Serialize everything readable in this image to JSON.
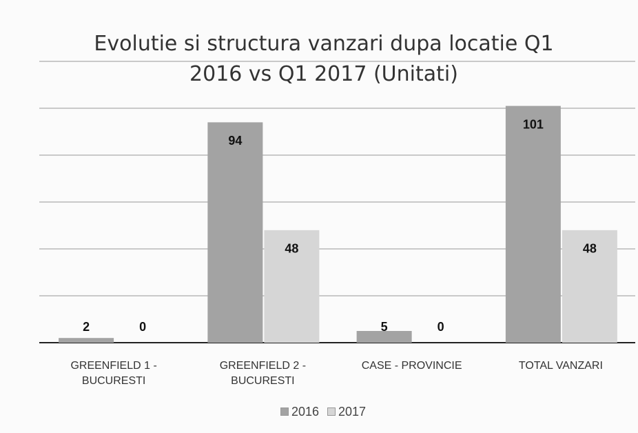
{
  "chart_data": {
    "type": "bar",
    "title": "Evolutie si structura vanzari dupa locatie Q1 2016 vs Q1 2017 (Unitati)",
    "categories": [
      "GREENFIELD 1 - BUCURESTI",
      "GREENFIELD 2 - BUCURESTI",
      "CASE - PROVINCIE",
      "TOTAL VANZARI"
    ],
    "series": [
      {
        "name": "2016",
        "color": "#a3a3a3",
        "values": [
          2,
          94,
          5,
          101
        ]
      },
      {
        "name": "2017",
        "color": "#d6d6d6",
        "values": [
          0,
          48,
          0,
          48
        ]
      }
    ],
    "ylim": [
      0,
      120
    ],
    "yticks": [
      0,
      20,
      40,
      60,
      80,
      100,
      120
    ],
    "grid": true,
    "legend": "bottom"
  }
}
